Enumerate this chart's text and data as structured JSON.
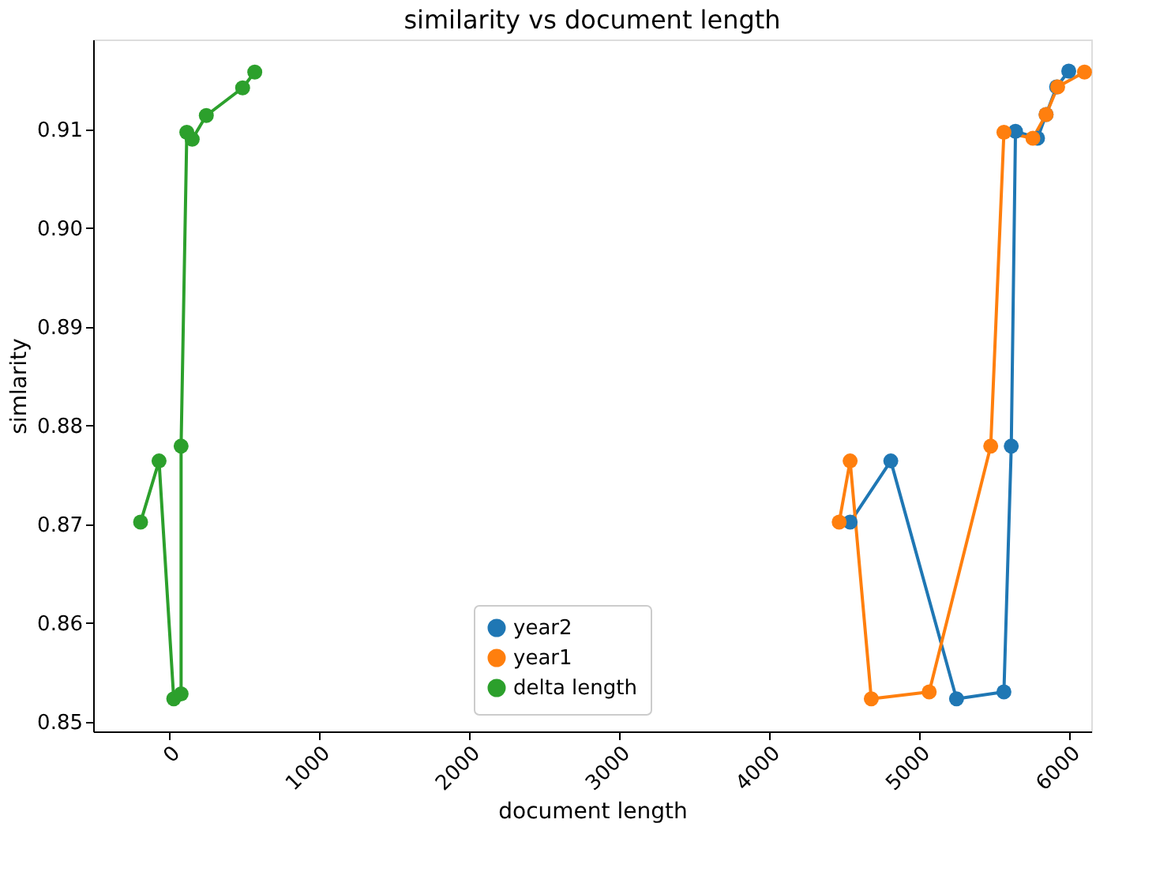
{
  "chart_data": {
    "type": "line",
    "title": "similarity vs document length",
    "xlabel": "document length",
    "ylabel": "simlarity",
    "xlim": [
      -505,
      6147
    ],
    "xticks": [
      0,
      1000,
      2000,
      3000,
      4000,
      5000,
      6000
    ],
    "ylim": [
      0.849,
      0.9191
    ],
    "yticks": [
      0.85,
      0.86,
      0.87,
      0.88,
      0.89,
      {
        "value": 0.9,
        "label": "0.90"
      },
      0.91
    ],
    "marker": "circle",
    "legend": "bottom",
    "grid": false,
    "series": [
      {
        "name": "year2",
        "color": "#1f77b4",
        "x": [
          4540,
          4811,
          5249,
          5565,
          5614,
          5642,
          5789,
          5846,
          5916,
          5997
        ],
        "values": [
          0.8702,
          0.8764,
          0.8523,
          0.853,
          0.8779,
          0.9098,
          0.9091,
          0.9115,
          0.9143,
          0.9159
        ]
      },
      {
        "name": "year1",
        "color": "#ff7f0e",
        "x": [
          4467,
          4540,
          4681,
          5067,
          5477,
          5565,
          5758,
          5846,
          5923,
          6102
        ],
        "values": [
          0.8702,
          0.8764,
          0.8523,
          0.853,
          0.8779,
          0.9097,
          0.9091,
          0.9115,
          0.9143,
          0.9158
        ]
      },
      {
        "name": "delta length",
        "color": "#2ca02c",
        "x": [
          -189,
          -66,
          32,
          81,
          81,
          119,
          155,
          249,
          491,
          572
        ],
        "values": [
          0.8702,
          0.8764,
          0.8523,
          0.8528,
          0.8779,
          0.9097,
          0.909,
          0.9114,
          0.9142,
          0.9158
        ]
      }
    ]
  }
}
